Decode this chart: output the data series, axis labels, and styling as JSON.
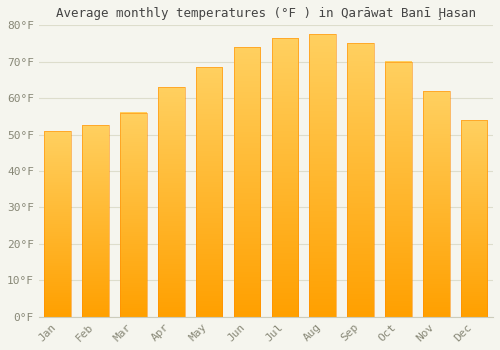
{
  "title": "Average monthly temperatures (°F ) in Qarāwat Banī Ḩasan",
  "months": [
    "Jan",
    "Feb",
    "Mar",
    "Apr",
    "May",
    "Jun",
    "Jul",
    "Aug",
    "Sep",
    "Oct",
    "Nov",
    "Dec"
  ],
  "values": [
    51,
    52.5,
    56,
    63,
    68.5,
    74,
    76.5,
    77.5,
    75,
    70,
    62,
    54
  ],
  "bar_color_top": "#FFC84A",
  "bar_color_bottom": "#FFA000",
  "ylim": [
    0,
    80
  ],
  "yticks": [
    0,
    10,
    20,
    30,
    40,
    50,
    60,
    70,
    80
  ],
  "ytick_labels": [
    "0°F",
    "10°F",
    "20°F",
    "30°F",
    "40°F",
    "50°F",
    "60°F",
    "70°F",
    "80°F"
  ],
  "background_color": "#f5f5ee",
  "grid_color": "#ddddcc",
  "title_fontsize": 9,
  "tick_fontsize": 8,
  "tick_color": "#888877"
}
